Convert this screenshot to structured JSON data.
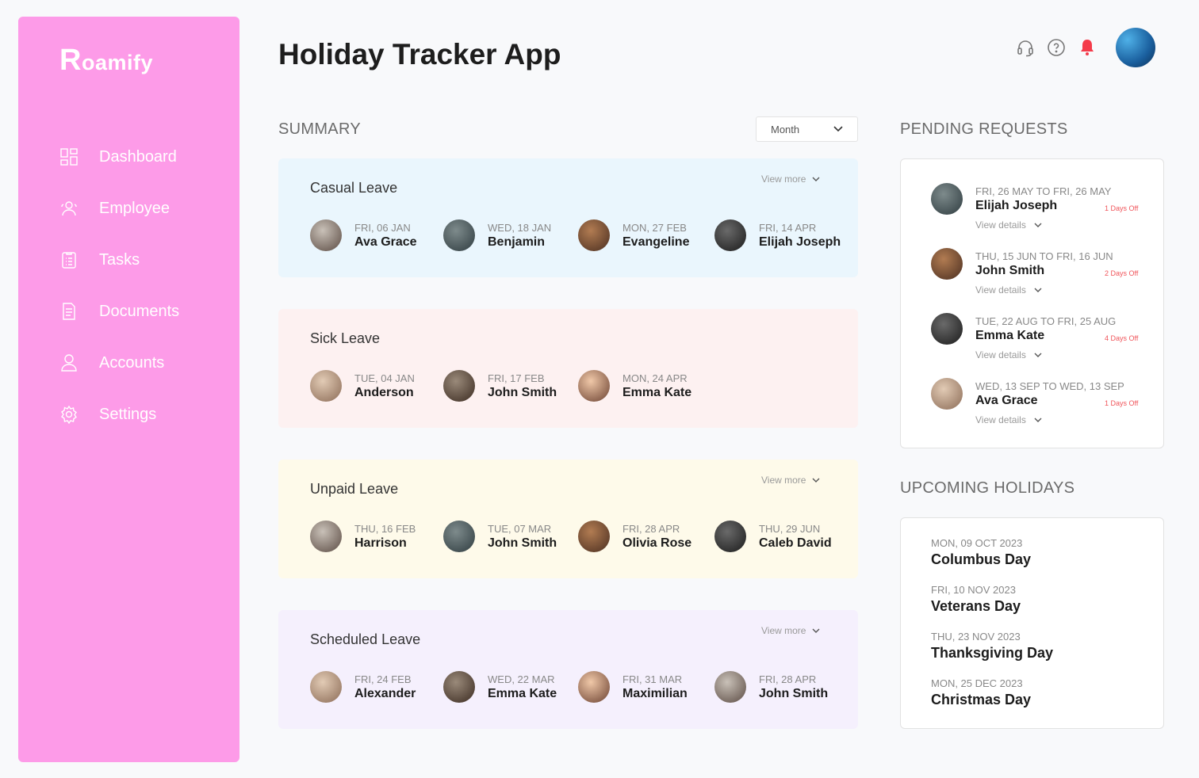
{
  "brand": {
    "logo": "Roamify",
    "color": "#fd9be8"
  },
  "sidebar": {
    "items": [
      {
        "label": "Dashboard",
        "icon": "dashboard-icon"
      },
      {
        "label": "Employee",
        "icon": "employee-icon"
      },
      {
        "label": "Tasks",
        "icon": "tasks-icon"
      },
      {
        "label": "Documents",
        "icon": "documents-icon"
      },
      {
        "label": "Accounts",
        "icon": "accounts-icon"
      },
      {
        "label": "Settings",
        "icon": "gear-icon"
      }
    ]
  },
  "header": {
    "title": "Holiday Tracker App",
    "icons": [
      "headset-icon",
      "help-icon",
      "bell-icon",
      "avatar"
    ],
    "bell_color": "#f43b4a"
  },
  "summary": {
    "title": "SUMMARY",
    "period": "Month",
    "view_more": "View more",
    "cards": [
      {
        "title": "Casual Leave",
        "bg": "#eaf6fd",
        "view_more": true,
        "people": [
          {
            "date": "FRI, 06 JAN",
            "name": "Ava Grace"
          },
          {
            "date": "WED, 18 JAN",
            "name": "Benjamin"
          },
          {
            "date": "MON, 27 FEB",
            "name": "Evangeline"
          },
          {
            "date": "FRI, 14 APR",
            "name": "Elijah Joseph"
          }
        ]
      },
      {
        "title": "Sick Leave",
        "bg": "#fdf1f1",
        "view_more": false,
        "people": [
          {
            "date": "TUE, 04 JAN",
            "name": "Anderson"
          },
          {
            "date": "FRI, 17 FEB",
            "name": "John Smith"
          },
          {
            "date": "MON, 24 APR",
            "name": "Emma Kate"
          }
        ]
      },
      {
        "title": "Unpaid Leave",
        "bg": "#fefaea",
        "view_more": true,
        "people": [
          {
            "date": "THU, 16 FEB",
            "name": "Harrison"
          },
          {
            "date": "TUE, 07 MAR",
            "name": "John Smith"
          },
          {
            "date": "FRI, 28 APR",
            "name": "Olivia Rose"
          },
          {
            "date": "THU, 29 JUN",
            "name": "Caleb David"
          }
        ]
      },
      {
        "title": "Scheduled Leave",
        "bg": "#f5f0fd",
        "view_more": true,
        "people": [
          {
            "date": "FRI, 24 FEB",
            "name": "Alexander"
          },
          {
            "date": "WED, 22 MAR",
            "name": "Emma Kate"
          },
          {
            "date": "FRI, 31 MAR",
            "name": "Maximilian"
          },
          {
            "date": "FRI, 28 APR",
            "name": "John Smith"
          }
        ]
      }
    ]
  },
  "pending": {
    "title": "PENDING REQUESTS",
    "view_details": "View details",
    "items": [
      {
        "dates": "FRI, 26 MAY TO FRI, 26 MAY",
        "name": "Elijah Joseph",
        "off": "1 Days Off"
      },
      {
        "dates": "THU, 15 JUN TO FRI, 16 JUN",
        "name": "John Smith",
        "off": "2 Days Off"
      },
      {
        "dates": "TUE, 22 AUG TO FRI, 25 AUG",
        "name": "Emma Kate",
        "off": "4 Days Off"
      },
      {
        "dates": "WED, 13 SEP TO WED, 13 SEP",
        "name": "Ava Grace",
        "off": "1 Days Off"
      }
    ]
  },
  "holidays": {
    "title": "UPCOMING HOLIDAYS",
    "items": [
      {
        "date": "MON, 09 OCT 2023",
        "name": "Columbus Day"
      },
      {
        "date": "FRI, 10 NOV 2023",
        "name": "Veterans Day"
      },
      {
        "date": "THU, 23 NOV 2023",
        "name": "Thanksgiving Day"
      },
      {
        "date": "MON, 25 DEC 2023",
        "name": "Christmas Day"
      }
    ]
  }
}
